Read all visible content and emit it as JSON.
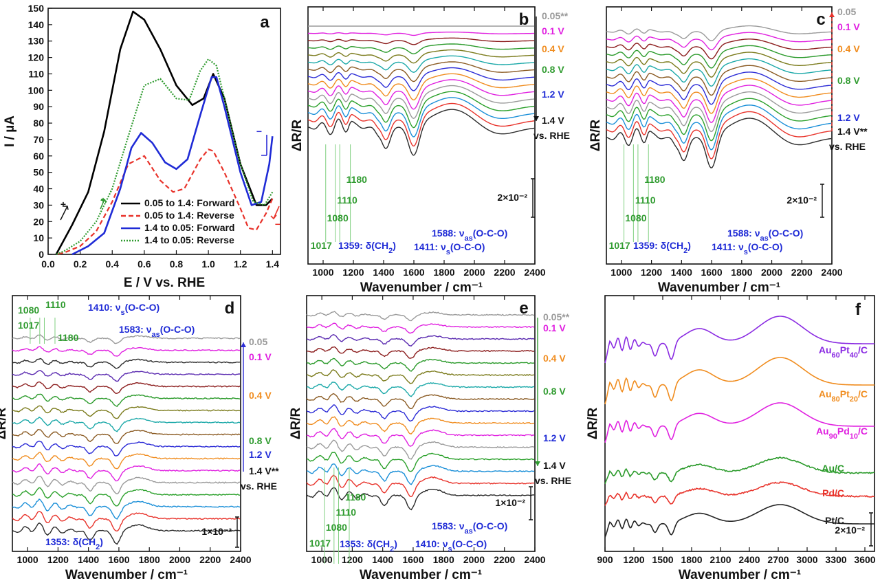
{
  "colors": {
    "axis": "#111111",
    "forward_black": "#000000",
    "reverse_red": "#e8322a",
    "forward_blue": "#1f2bd6",
    "reverse_green": "#2e9a2e",
    "label_green": "#2f9b2f",
    "label_blue": "#1f2bd6",
    "label_magenta": "#e020e0",
    "label_orange": "#f08c1e",
    "label_gray": "#9a9a9a",
    "arrow_red": "#e8322a",
    "arrow_blue": "#2b2bd6"
  },
  "spectrum_palette": [
    "#2a2a2a",
    "#e8322a",
    "#1a8fd8",
    "#2aa02a",
    "#9a9a9a",
    "#e020e0",
    "#f08c1e",
    "#2b2bd6",
    "#8a5a22",
    "#1aa8a8",
    "#7a7a1a",
    "#2a9a2a",
    "#8a1a1a",
    "#5a2ab0"
  ],
  "chart_data": [
    {
      "panel": "a",
      "type": "line",
      "xlabel": "E / V vs. RHE",
      "ylabel": "I / µA",
      "xlim": [
        0.0,
        1.45
      ],
      "ylim": [
        0,
        150
      ],
      "xticks": [
        "0.0",
        "0.2",
        "0.4",
        "0.6",
        "0.8",
        "1.0",
        "1.2",
        "1.4"
      ],
      "yticks": [
        "0",
        "10",
        "20",
        "30",
        "40",
        "50",
        "60",
        "70",
        "80",
        "90",
        "100",
        "110",
        "120",
        "130",
        "140",
        "150"
      ],
      "legend_position": "bottom-right",
      "series": [
        {
          "name": "0.05 to 1.4: Forward",
          "color": "#000000",
          "style": "solid",
          "x": [
            0.05,
            0.15,
            0.25,
            0.35,
            0.45,
            0.53,
            0.6,
            0.7,
            0.8,
            0.9,
            0.97,
            1.03,
            1.1,
            1.2,
            1.3,
            1.36,
            1.4
          ],
          "y": [
            0,
            18,
            38,
            75,
            125,
            148,
            143,
            125,
            103,
            91,
            95,
            110,
            95,
            55,
            30,
            30,
            34
          ]
        },
        {
          "name": "0.05 to 1.4: Reverse",
          "color": "#e8322a",
          "style": "dashed",
          "x": [
            1.4,
            1.36,
            1.3,
            1.25,
            1.2,
            1.1,
            1.03,
            1.0,
            0.95,
            0.85,
            0.78,
            0.7,
            0.6,
            0.5,
            0.4,
            0.3,
            0.2,
            0.1,
            0.05
          ],
          "y": [
            34,
            25,
            15,
            16,
            28,
            50,
            63,
            64,
            58,
            40,
            38,
            45,
            60,
            55,
            32,
            14,
            5,
            1,
            0
          ]
        },
        {
          "name": "1.4 to 0.05: Forward",
          "color": "#1f2bd6",
          "style": "solid",
          "x": [
            0.15,
            0.25,
            0.35,
            0.45,
            0.52,
            0.58,
            0.65,
            0.73,
            0.8,
            0.87,
            0.95,
            1.02,
            1.05,
            1.1,
            1.2,
            1.27,
            1.33,
            1.38,
            1.4
          ],
          "y": [
            0,
            5,
            13,
            40,
            65,
            74,
            68,
            56,
            52,
            58,
            85,
            108,
            108,
            90,
            50,
            30,
            32,
            55,
            72
          ]
        },
        {
          "name": "1.4 to 0.05: Reverse",
          "color": "#2e9a2e",
          "style": "dotted",
          "x": [
            1.4,
            1.35,
            1.28,
            1.2,
            1.1,
            1.05,
            1.0,
            0.95,
            0.88,
            0.8,
            0.7,
            0.6,
            0.5,
            0.4,
            0.3,
            0.2,
            0.1,
            0.05
          ],
          "y": [
            38,
            30,
            32,
            55,
            95,
            115,
            119,
            112,
            94,
            95,
            107,
            103,
            72,
            40,
            20,
            8,
            2,
            0
          ]
        }
      ],
      "annotations": [
        "+",
        "+",
        "−",
        "−"
      ]
    },
    {
      "panel": "b",
      "type": "line",
      "title": "b",
      "xlabel": "Wavenumber / cm⁻¹",
      "ylabel": "ΔR/R",
      "xlim": [
        900,
        2400
      ],
      "xticks": [
        "1000",
        "1200",
        "1400",
        "1600",
        "1800",
        "2000",
        "2200",
        "2400"
      ],
      "num_spectra": 15,
      "potential_labels": [
        {
          "text": "0.05**",
          "color": "#9a9a9a"
        },
        {
          "text": "0.1 V",
          "color": "#e020e0"
        },
        {
          "text": "0.4 V",
          "color": "#f08c1e"
        },
        {
          "text": "0.8 V",
          "color": "#2f9b2f"
        },
        {
          "text": "1.2 V",
          "color": "#1f2bd6"
        },
        {
          "text": "1.4 V",
          "color": "#111111"
        }
      ],
      "reference": "vs. RHE",
      "scale_bar": "2×10⁻²",
      "peaks_green": [
        "1017",
        "1080",
        "1110",
        "1180"
      ],
      "peaks_blue": [
        {
          "pre": "1359: ",
          "sym": "δ",
          "mid": "(CH",
          "sub": "2",
          "post": ")"
        },
        {
          "pre": "1411: ",
          "sym": "ν",
          "sub": "s",
          "post": "(O-C-O)"
        },
        {
          "pre": "1588: ",
          "sym": "ν",
          "sub": "as",
          "post": "(O-C-O)"
        }
      ]
    },
    {
      "panel": "c",
      "type": "line",
      "title": "c",
      "xlabel": "Wavenumber / cm⁻¹",
      "ylabel": "ΔR/R",
      "xlim": [
        900,
        2400
      ],
      "xticks": [
        "1000",
        "1200",
        "1400",
        "1600",
        "1800",
        "2000",
        "2200",
        "2400"
      ],
      "num_spectra": 15,
      "potential_labels": [
        {
          "text": "0.05",
          "color": "#9a9a9a"
        },
        {
          "text": "0.1 V",
          "color": "#e020e0"
        },
        {
          "text": "0.4 V",
          "color": "#f08c1e"
        },
        {
          "text": "0.8 V",
          "color": "#2f9b2f"
        },
        {
          "text": "1.2 V",
          "color": "#1f2bd6"
        },
        {
          "text": "1.4 V**",
          "color": "#111111"
        }
      ],
      "reference": "vs. RHE",
      "scale_bar": "2×10⁻²",
      "peaks_green": [
        "1017",
        "1080",
        "1110",
        "1180"
      ],
      "peaks_blue": [
        {
          "pre": "1359: ",
          "sym": "δ",
          "mid": "(CH",
          "sub": "2",
          "post": ")"
        },
        {
          "pre": "1411: ",
          "sym": "ν",
          "sub": "s",
          "post": "(O-C-O)"
        },
        {
          "pre": "1588: ",
          "sym": "ν",
          "sub": "as",
          "post": "(O-C-O)"
        }
      ]
    },
    {
      "panel": "d",
      "type": "line",
      "title": "d",
      "xlabel": "Wavenumber / cm⁻¹",
      "ylabel": "ΔR/R",
      "xlim": [
        900,
        2400
      ],
      "xticks": [
        "1000",
        "1200",
        "1400",
        "1600",
        "1800",
        "2000",
        "2200",
        "2400"
      ],
      "num_spectra": 17,
      "potential_labels": [
        {
          "text": "0.05",
          "color": "#9a9a9a"
        },
        {
          "text": "0.1 V",
          "color": "#e020e0"
        },
        {
          "text": "0.4 V",
          "color": "#f08c1e"
        },
        {
          "text": "0.8 V",
          "color": "#2f9b2f"
        },
        {
          "text": "1.2 V",
          "color": "#1f2bd6"
        },
        {
          "text": "1.4 V**",
          "color": "#111111"
        }
      ],
      "reference": "vs. RHE",
      "scale_bar": "1×10⁻²",
      "peaks_green": [
        "1080",
        "1110",
        "1017",
        "1180"
      ],
      "peaks_blue": [
        {
          "pre": "1410: ",
          "sym": "ν",
          "sub": "s",
          "post": "(O-C-O)"
        },
        {
          "pre": "1583: ",
          "sym": "ν",
          "sub": "as",
          "post": "(O-C-O)"
        },
        {
          "pre": "1353: ",
          "sym": "δ",
          "mid": "(CH",
          "sub": "2",
          "post": ")"
        }
      ]
    },
    {
      "panel": "e",
      "type": "line",
      "title": "e",
      "xlabel": "Wavenumber / cm⁻¹",
      "ylabel": "ΔR/R",
      "xlim": [
        900,
        2400
      ],
      "xticks": [
        "1000",
        "1200",
        "1400",
        "1600",
        "1800",
        "2000",
        "2200",
        "2400"
      ],
      "num_spectra": 16,
      "potential_labels": [
        {
          "text": "0.05**",
          "color": "#9a9a9a"
        },
        {
          "text": "0.1 V",
          "color": "#e020e0"
        },
        {
          "text": "0.4 V",
          "color": "#f08c1e"
        },
        {
          "text": "0.8 V",
          "color": "#2f9b2f"
        },
        {
          "text": "1.2 V",
          "color": "#1f2bd6"
        },
        {
          "text": "1.4 V",
          "color": "#111111"
        }
      ],
      "reference": "vs. RHE",
      "scale_bar": "1×10⁻²",
      "peaks_green": [
        "1180",
        "1110",
        "1080",
        "1017"
      ],
      "peaks_blue": [
        {
          "pre": "1583: ",
          "sym": "ν",
          "sub": "as",
          "post": "(O-C-O)"
        },
        {
          "pre": "1353: ",
          "sym": "δ",
          "mid": "(CH",
          "sub": "2",
          "post": ")"
        },
        {
          "pre": "1410: ",
          "sym": "ν",
          "sub": "s",
          "post": "(O-C-O)"
        }
      ]
    },
    {
      "panel": "f",
      "type": "line",
      "title": "f",
      "xlabel": "Wavenumber / cm⁻¹",
      "ylabel": "ΔR/R",
      "xlim": [
        900,
        3700
      ],
      "xticks": [
        "900",
        "1200",
        "1500",
        "1800",
        "2100",
        "2400",
        "2700",
        "3000",
        "3300",
        "3600"
      ],
      "scale_bar": "2×10⁻²",
      "series": [
        {
          "name": "Au60Pt40/C",
          "base": "Au",
          "s1": "60",
          "mid": "Pt",
          "s2": "40",
          "tail": "/C",
          "color": "#8a2be2"
        },
        {
          "name": "Au80Pt20/C",
          "base": "Au",
          "s1": "80",
          "mid": "Pt",
          "s2": "20",
          "tail": "/C",
          "color": "#f08c1e"
        },
        {
          "name": "Au90Pd10/C",
          "base": "Au",
          "s1": "90",
          "mid": "Pd",
          "s2": "10",
          "tail": "/C",
          "color": "#e020e0"
        },
        {
          "name": "Au/C",
          "color": "#2a9a2a"
        },
        {
          "name": "Pd/C",
          "color": "#e8322a"
        },
        {
          "name": "Pt/C",
          "color": "#222222"
        }
      ]
    }
  ]
}
